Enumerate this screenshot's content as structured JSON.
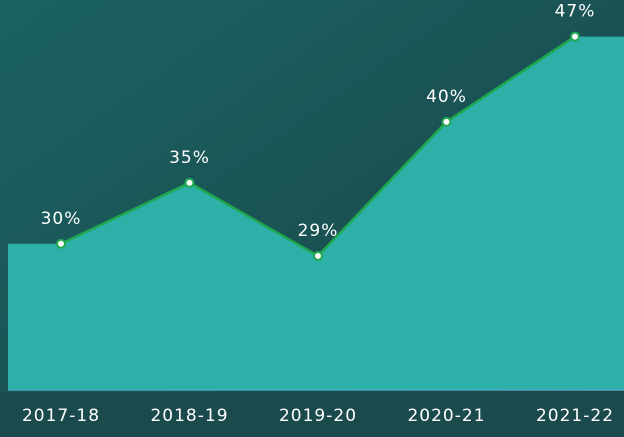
{
  "chart_data": {
    "type": "area",
    "categories": [
      "2017-18",
      "2018-19",
      "2019-20",
      "2020-21",
      "2021-22"
    ],
    "values": [
      30,
      35,
      29,
      40,
      47
    ],
    "value_labels": [
      "30%",
      "35%",
      "29%",
      "40%",
      "47%"
    ],
    "color": "#2db0a8",
    "line_color": "#1fa850",
    "ylim": [
      18,
      50
    ]
  }
}
